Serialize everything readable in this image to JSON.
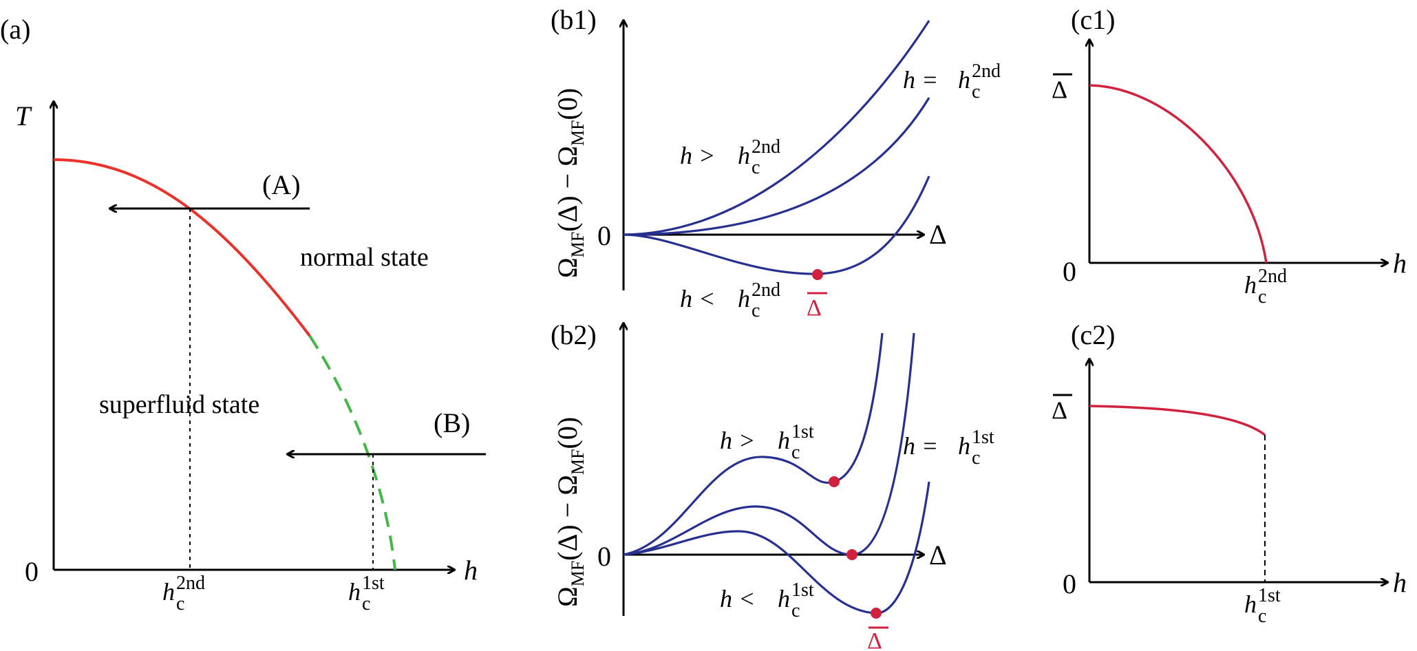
{
  "panels": {
    "a": {
      "label": "(a)",
      "y_axis": "T",
      "x_axis": "h",
      "origin": "0",
      "region_normal": "normal state",
      "region_superfluid": "superfluid state",
      "path_a": "(A)",
      "path_b": "(B)",
      "tick_2nd_base": "h",
      "tick_2nd_sub": "c",
      "tick_2nd_sup": "2nd",
      "tick_1st_base": "h",
      "tick_1st_sub": "c",
      "tick_1st_sup": "1st"
    },
    "b1": {
      "label": "(b1)",
      "y_axis_main": "Ω",
      "y_axis_sub": "MF",
      "y_axis_rest": "(Δ) − Ω",
      "y_axis_sub2": "MF",
      "y_axis_end": "(0)",
      "x_axis": "Δ",
      "origin": "0",
      "curve_gt": {
        "lhs": "h >",
        "base": "h",
        "sub": "c",
        "sup": "2nd"
      },
      "curve_eq": {
        "lhs": "h =",
        "base": "h",
        "sub": "c",
        "sup": "2nd"
      },
      "curve_lt": {
        "lhs": "h <",
        "base": "h",
        "sub": "c",
        "sup": "2nd"
      },
      "min_label": "Δ"
    },
    "b2": {
      "label": "(b2)",
      "y_axis_main": "Ω",
      "y_axis_sub": "MF",
      "y_axis_rest": "(Δ) − Ω",
      "y_axis_sub2": "MF",
      "y_axis_end": "(0)",
      "x_axis": "Δ",
      "origin": "0",
      "curve_gt": {
        "lhs": "h >",
        "base": "h",
        "sub": "c",
        "sup": "1st"
      },
      "curve_eq": {
        "lhs": "h =",
        "base": "h",
        "sub": "c",
        "sup": "1st"
      },
      "curve_lt": {
        "lhs": "h <",
        "base": "h",
        "sub": "c",
        "sup": "1st"
      },
      "min_label": "Δ"
    },
    "c1": {
      "label": "(c1)",
      "y_axis": "Δ",
      "x_axis": "h",
      "origin": "0",
      "tick_base": "h",
      "tick_sub": "c",
      "tick_sup": "2nd"
    },
    "c2": {
      "label": "(c2)",
      "y_axis": "Δ",
      "x_axis": "h",
      "origin": "0",
      "tick_base": "h",
      "tick_sub": "c",
      "tick_sup": "1st"
    }
  },
  "colors": {
    "phase_boundary_second_order": "#e8332a",
    "phase_boundary_first_order": "#47b649",
    "free_energy_curves": "#28308f",
    "gap_and_minima": "#d0223f"
  }
}
